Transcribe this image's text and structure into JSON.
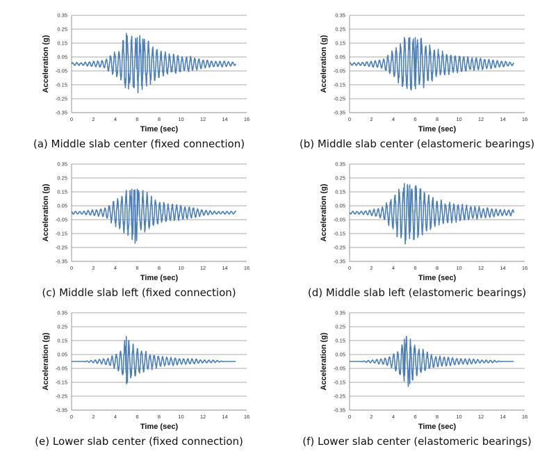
{
  "accent_color": "#4a7ebb",
  "chart_data": [
    {
      "type": "line",
      "caption": "(a) Middle slab center (fixed connection)",
      "xlabel": "Time (sec)",
      "ylabel": "Acceleration (g)",
      "xlim": [
        0,
        16
      ],
      "ylim": [
        -0.35,
        0.35
      ],
      "x_ticks": [
        "0",
        "2",
        "4",
        "6",
        "8",
        "10",
        "12",
        "14",
        "16"
      ],
      "y_ticks": [
        "0.35",
        "0.25",
        "0.15",
        "0.05",
        "-0.05",
        "-0.15",
        "-0.25",
        "-0.35"
      ],
      "grid": true,
      "legend": "none",
      "series": [
        {
          "x": [
            0,
            1,
            2,
            3,
            3.5,
            4,
            4.5,
            5,
            5.2,
            5.5,
            6,
            6.5,
            7,
            7.5,
            8,
            9,
            10,
            11,
            12,
            13,
            14,
            15
          ],
          "y": [
            0.01,
            0.01,
            0.02,
            0.03,
            0.06,
            0.09,
            0.13,
            0.22,
            -0.18,
            0.2,
            0.19,
            0.18,
            0.15,
            0.13,
            0.1,
            0.07,
            0.06,
            0.05,
            0.03,
            0.02,
            0.02,
            0.01
          ]
        }
      ]
    },
    {
      "type": "line",
      "caption": "(b) Middle slab center (elastomeric bearings)",
      "xlabel": "Time (sec)",
      "ylabel": "Acceleration (g)",
      "xlim": [
        0,
        16
      ],
      "ylim": [
        -0.35,
        0.35
      ],
      "x_ticks": [
        "0",
        "2",
        "4",
        "6",
        "8",
        "10",
        "12",
        "14",
        "16"
      ],
      "y_ticks": [
        "0.35",
        "0.25",
        "0.15",
        "0.05",
        "-0.05",
        "-0.15",
        "-0.25",
        "-0.35"
      ],
      "grid": true,
      "legend": "none",
      "series": [
        {
          "x": [
            0,
            1,
            2,
            3,
            3.5,
            4,
            4.5,
            5,
            5.5,
            6,
            6.5,
            7,
            7.5,
            8,
            9,
            10,
            11,
            12,
            13,
            14,
            15
          ],
          "y": [
            0.01,
            0.01,
            0.02,
            0.03,
            0.06,
            0.1,
            0.14,
            0.19,
            0.19,
            0.19,
            0.18,
            0.14,
            0.12,
            0.1,
            0.07,
            0.06,
            0.05,
            0.04,
            0.03,
            0.02,
            0.01
          ]
        }
      ]
    },
    {
      "type": "line",
      "caption": "(c) Middle slab left (fixed connection)",
      "xlabel": "Time (sec)",
      "ylabel": "Acceleration (g)",
      "xlim": [
        0,
        16
      ],
      "ylim": [
        -0.35,
        0.35
      ],
      "x_ticks": [
        "0",
        "2",
        "4",
        "6",
        "8",
        "10",
        "12",
        "14",
        "16"
      ],
      "y_ticks": [
        "0.35",
        "0.25",
        "0.15",
        "0.05",
        "-0.05",
        "-0.15",
        "-0.25",
        "-0.35"
      ],
      "grid": true,
      "legend": "none",
      "series": [
        {
          "x": [
            0,
            1,
            2,
            3,
            3.5,
            4,
            4.5,
            5,
            5.5,
            5.8,
            6,
            6.5,
            7,
            7.5,
            8,
            9,
            10,
            11,
            12,
            13,
            14,
            15
          ],
          "y": [
            0.01,
            0.01,
            0.02,
            0.03,
            0.06,
            0.09,
            0.12,
            0.16,
            0.17,
            -0.22,
            0.17,
            0.15,
            0.13,
            0.1,
            0.08,
            0.06,
            0.05,
            0.04,
            0.02,
            0.01,
            0.01,
            0.01
          ]
        }
      ]
    },
    {
      "type": "line",
      "caption": "(d) Middle slab left (elastomeric bearings)",
      "xlabel": "Time (sec)",
      "ylabel": "Acceleration (g)",
      "xlim": [
        0,
        16
      ],
      "ylim": [
        -0.35,
        0.35
      ],
      "x_ticks": [
        "0",
        "2",
        "4",
        "6",
        "8",
        "10",
        "12",
        "14",
        "16"
      ],
      "y_ticks": [
        "0.35",
        "0.25",
        "0.15",
        "0.05",
        "-0.05",
        "-0.15",
        "-0.25",
        "-0.35"
      ],
      "grid": true,
      "legend": "none",
      "series": [
        {
          "x": [
            0,
            1,
            2,
            3,
            3.5,
            4,
            4.5,
            5,
            5.5,
            6,
            6.5,
            7,
            7.5,
            8,
            9,
            10,
            11,
            12,
            13,
            14,
            15
          ],
          "y": [
            0.01,
            0.01,
            0.02,
            0.04,
            0.08,
            0.13,
            0.17,
            0.21,
            0.2,
            0.19,
            0.17,
            0.14,
            0.11,
            0.09,
            0.07,
            0.06,
            0.05,
            0.04,
            0.03,
            0.02,
            0.02
          ]
        }
      ]
    },
    {
      "type": "line",
      "caption": "(e) Lower slab center (fixed connection)",
      "xlabel": "Time (sec)",
      "ylabel": "Acceleration (g)",
      "xlim": [
        0,
        16
      ],
      "ylim": [
        -0.35,
        0.35
      ],
      "x_ticks": [
        "0",
        "2",
        "4",
        "6",
        "8",
        "10",
        "12",
        "14",
        "16"
      ],
      "y_ticks": [
        "0.35",
        "0.25",
        "0.15",
        "0.05",
        "-0.05",
        "-0.15",
        "-0.25",
        "-0.35"
      ],
      "grid": true,
      "legend": "none",
      "series": [
        {
          "x": [
            0,
            1,
            2,
            3,
            3.5,
            4,
            4.5,
            5,
            5.1,
            5.5,
            6,
            6.5,
            7,
            7.5,
            8,
            9,
            10,
            11,
            12,
            13,
            14,
            15
          ],
          "y": [
            0.0,
            0.0,
            0.01,
            0.02,
            0.03,
            0.05,
            0.08,
            0.18,
            -0.15,
            0.12,
            0.1,
            0.08,
            0.06,
            0.05,
            0.04,
            0.03,
            0.02,
            0.02,
            0.01,
            0.01,
            0.0,
            0.0
          ]
        }
      ]
    },
    {
      "type": "line",
      "caption": "(f) Lower slab center (elastomeric bearings)",
      "xlabel": "Time (sec)",
      "ylabel": "Acceleration (g)",
      "xlim": [
        0,
        16
      ],
      "ylim": [
        -0.35,
        0.35
      ],
      "x_ticks": [
        "0",
        "2",
        "4",
        "6",
        "8",
        "10",
        "12",
        "14",
        "16"
      ],
      "y_ticks": [
        "0.35",
        "0.25",
        "0.15",
        "0.05",
        "-0.05",
        "-0.15",
        "-0.25",
        "-0.35"
      ],
      "grid": true,
      "legend": "none",
      "series": [
        {
          "x": [
            0,
            1,
            2,
            3,
            3.5,
            4,
            4.5,
            5,
            5.2,
            5.5,
            6,
            6.5,
            7,
            7.5,
            8,
            9,
            10,
            11,
            12,
            13,
            14,
            15
          ],
          "y": [
            0.0,
            0.0,
            0.01,
            0.02,
            0.03,
            0.05,
            0.09,
            0.16,
            0.18,
            -0.16,
            0.12,
            0.09,
            0.07,
            0.05,
            0.04,
            0.03,
            0.02,
            0.02,
            0.01,
            0.01,
            0.0,
            0.0
          ]
        }
      ]
    }
  ]
}
